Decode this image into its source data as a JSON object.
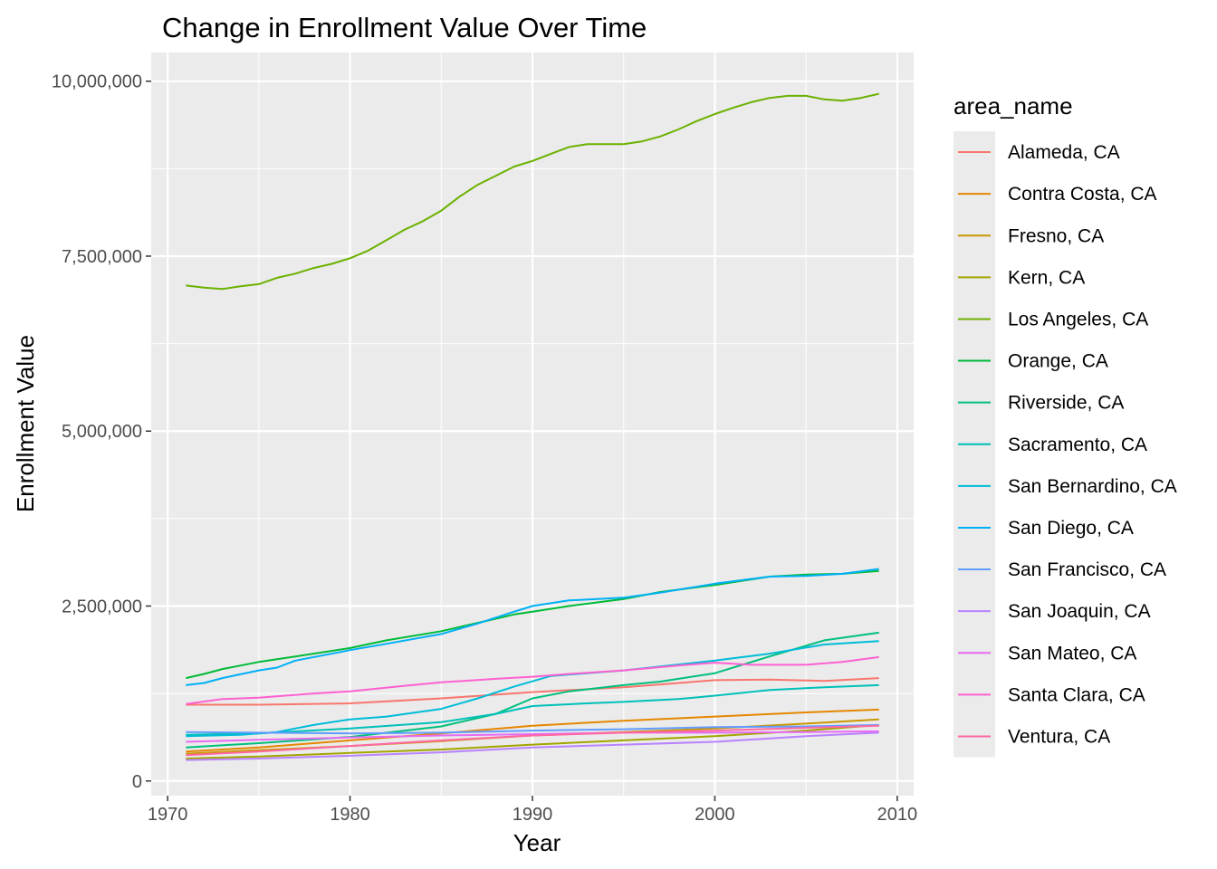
{
  "chart_data": {
    "type": "line",
    "title": "Change in Enrollment Value Over Time",
    "xlabel": "Year",
    "ylabel": "Enrollment Value",
    "xlim": [
      1969.1,
      2010.9
    ],
    "ylim": [
      -210000,
      10410000
    ],
    "x_ticks": [
      1970,
      1980,
      1990,
      2000,
      2010
    ],
    "y_ticks": [
      0,
      2500000,
      5000000,
      7500000,
      10000000
    ],
    "x_tick_labels": [
      "1970",
      "1980",
      "1990",
      "2000",
      "2010"
    ],
    "y_tick_labels": [
      "0",
      "2,500,000",
      "5,000,000",
      "7,500,000",
      "10,000,000"
    ],
    "grid": true,
    "panel_background": "#ebebeb",
    "grid_color": "#ffffff",
    "legend": {
      "title": "area_name",
      "position": "right",
      "key_background": "#ebebeb"
    },
    "series": [
      {
        "name": "Alameda, CA",
        "color": "#F8766D",
        "points": [
          [
            1971,
            1090000
          ],
          [
            1975,
            1090000
          ],
          [
            1980,
            1110000
          ],
          [
            1985,
            1180000
          ],
          [
            1990,
            1270000
          ],
          [
            1995,
            1340000
          ],
          [
            2000,
            1440000
          ],
          [
            2003,
            1450000
          ],
          [
            2006,
            1430000
          ],
          [
            2009,
            1470000
          ]
        ]
      },
      {
        "name": "Contra Costa, CA",
        "color": "#E58700",
        "points": [
          [
            1971,
            420000
          ],
          [
            1975,
            480000
          ],
          [
            1980,
            580000
          ],
          [
            1985,
            680000
          ],
          [
            1990,
            790000
          ],
          [
            1995,
            860000
          ],
          [
            2000,
            920000
          ],
          [
            2005,
            980000
          ],
          [
            2009,
            1020000
          ]
        ]
      },
      {
        "name": "Fresno, CA",
        "color": "#C99800",
        "points": [
          [
            1971,
            390000
          ],
          [
            1975,
            440000
          ],
          [
            1980,
            500000
          ],
          [
            1985,
            570000
          ],
          [
            1990,
            650000
          ],
          [
            1995,
            700000
          ],
          [
            2000,
            750000
          ],
          [
            2005,
            820000
          ],
          [
            2009,
            880000
          ]
        ]
      },
      {
        "name": "Kern, CA",
        "color": "#A3A500",
        "points": [
          [
            1971,
            320000
          ],
          [
            1975,
            350000
          ],
          [
            1980,
            400000
          ],
          [
            1985,
            450000
          ],
          [
            1990,
            520000
          ],
          [
            1995,
            580000
          ],
          [
            2000,
            640000
          ],
          [
            2005,
            720000
          ],
          [
            2009,
            800000
          ]
        ]
      },
      {
        "name": "Los Angeles, CA",
        "color": "#6BB100",
        "points": [
          [
            1971,
            7080000
          ],
          [
            1972,
            7050000
          ],
          [
            1973,
            7030000
          ],
          [
            1974,
            7070000
          ],
          [
            1975,
            7100000
          ],
          [
            1976,
            7190000
          ],
          [
            1977,
            7250000
          ],
          [
            1978,
            7330000
          ],
          [
            1979,
            7390000
          ],
          [
            1980,
            7470000
          ],
          [
            1981,
            7580000
          ],
          [
            1982,
            7730000
          ],
          [
            1983,
            7880000
          ],
          [
            1984,
            8000000
          ],
          [
            1985,
            8150000
          ],
          [
            1986,
            8350000
          ],
          [
            1987,
            8520000
          ],
          [
            1988,
            8650000
          ],
          [
            1989,
            8780000
          ],
          [
            1990,
            8860000
          ],
          [
            1991,
            8960000
          ],
          [
            1992,
            9060000
          ],
          [
            1993,
            9100000
          ],
          [
            1994,
            9100000
          ],
          [
            1995,
            9100000
          ],
          [
            1996,
            9140000
          ],
          [
            1997,
            9210000
          ],
          [
            1998,
            9310000
          ],
          [
            1999,
            9430000
          ],
          [
            2000,
            9530000
          ],
          [
            2001,
            9620000
          ],
          [
            2002,
            9700000
          ],
          [
            2003,
            9760000
          ],
          [
            2004,
            9790000
          ],
          [
            2005,
            9790000
          ],
          [
            2006,
            9740000
          ],
          [
            2007,
            9720000
          ],
          [
            2008,
            9760000
          ],
          [
            2009,
            9820000
          ]
        ]
      },
      {
        "name": "Orange, CA",
        "color": "#00BA38",
        "points": [
          [
            1971,
            1470000
          ],
          [
            1972,
            1530000
          ],
          [
            1973,
            1600000
          ],
          [
            1975,
            1700000
          ],
          [
            1977,
            1780000
          ],
          [
            1980,
            1900000
          ],
          [
            1982,
            2010000
          ],
          [
            1985,
            2140000
          ],
          [
            1987,
            2260000
          ],
          [
            1989,
            2380000
          ],
          [
            1990,
            2420000
          ],
          [
            1992,
            2500000
          ],
          [
            1995,
            2600000
          ],
          [
            1997,
            2700000
          ],
          [
            2000,
            2800000
          ],
          [
            2003,
            2920000
          ],
          [
            2005,
            2950000
          ],
          [
            2007,
            2960000
          ],
          [
            2009,
            3000000
          ]
        ]
      },
      {
        "name": "Riverside, CA",
        "color": "#00BF7D",
        "points": [
          [
            1971,
            480000
          ],
          [
            1975,
            540000
          ],
          [
            1980,
            630000
          ],
          [
            1985,
            780000
          ],
          [
            1988,
            960000
          ],
          [
            1990,
            1180000
          ],
          [
            1992,
            1280000
          ],
          [
            1995,
            1370000
          ],
          [
            1997,
            1420000
          ],
          [
            2000,
            1540000
          ],
          [
            2003,
            1780000
          ],
          [
            2006,
            2010000
          ],
          [
            2009,
            2120000
          ]
        ]
      },
      {
        "name": "Sacramento, CA",
        "color": "#00C0B8",
        "points": [
          [
            1971,
            660000
          ],
          [
            1975,
            680000
          ],
          [
            1980,
            750000
          ],
          [
            1985,
            840000
          ],
          [
            1988,
            960000
          ],
          [
            1990,
            1070000
          ],
          [
            1993,
            1110000
          ],
          [
            1995,
            1130000
          ],
          [
            1998,
            1170000
          ],
          [
            2000,
            1220000
          ],
          [
            2003,
            1300000
          ],
          [
            2006,
            1340000
          ],
          [
            2009,
            1370000
          ]
        ]
      },
      {
        "name": "San Bernardino, CA",
        "color": "#00BCD8",
        "points": [
          [
            1971,
            640000
          ],
          [
            1974,
            660000
          ],
          [
            1976,
            700000
          ],
          [
            1978,
            800000
          ],
          [
            1980,
            880000
          ],
          [
            1982,
            920000
          ],
          [
            1985,
            1030000
          ],
          [
            1987,
            1180000
          ],
          [
            1989,
            1350000
          ],
          [
            1991,
            1500000
          ],
          [
            1995,
            1580000
          ],
          [
            2000,
            1720000
          ],
          [
            2003,
            1820000
          ],
          [
            2006,
            1950000
          ],
          [
            2009,
            2000000
          ]
        ]
      },
      {
        "name": "San Diego, CA",
        "color": "#00B0F6",
        "points": [
          [
            1971,
            1370000
          ],
          [
            1972,
            1400000
          ],
          [
            1973,
            1470000
          ],
          [
            1975,
            1580000
          ],
          [
            1976,
            1620000
          ],
          [
            1977,
            1720000
          ],
          [
            1980,
            1870000
          ],
          [
            1982,
            1960000
          ],
          [
            1985,
            2100000
          ],
          [
            1987,
            2250000
          ],
          [
            1989,
            2420000
          ],
          [
            1990,
            2500000
          ],
          [
            1992,
            2580000
          ],
          [
            1995,
            2620000
          ],
          [
            1997,
            2690000
          ],
          [
            2000,
            2820000
          ],
          [
            2003,
            2920000
          ],
          [
            2005,
            2930000
          ],
          [
            2007,
            2960000
          ],
          [
            2009,
            3030000
          ]
        ]
      },
      {
        "name": "San Francisco, CA",
        "color": "#619CFF",
        "points": [
          [
            1971,
            700000
          ],
          [
            1975,
            690000
          ],
          [
            1980,
            680000
          ],
          [
            1985,
            690000
          ],
          [
            1990,
            720000
          ],
          [
            1995,
            740000
          ],
          [
            2000,
            770000
          ],
          [
            2005,
            780000
          ],
          [
            2009,
            800000
          ]
        ]
      },
      {
        "name": "San Joaquin, CA",
        "color": "#B983FF",
        "points": [
          [
            1971,
            300000
          ],
          [
            1975,
            320000
          ],
          [
            1980,
            360000
          ],
          [
            1985,
            410000
          ],
          [
            1990,
            480000
          ],
          [
            1995,
            520000
          ],
          [
            2000,
            560000
          ],
          [
            2005,
            640000
          ],
          [
            2009,
            690000
          ]
        ]
      },
      {
        "name": "San Mateo, CA",
        "color": "#E76BF3",
        "points": [
          [
            1971,
            560000
          ],
          [
            1975,
            590000
          ],
          [
            1980,
            620000
          ],
          [
            1985,
            650000
          ],
          [
            1990,
            670000
          ],
          [
            1995,
            690000
          ],
          [
            2000,
            690000
          ],
          [
            2005,
            700000
          ],
          [
            2009,
            710000
          ]
        ]
      },
      {
        "name": "Santa Clara, CA",
        "color": "#FD61D1",
        "points": [
          [
            1971,
            1100000
          ],
          [
            1973,
            1170000
          ],
          [
            1975,
            1190000
          ],
          [
            1978,
            1250000
          ],
          [
            1980,
            1280000
          ],
          [
            1983,
            1360000
          ],
          [
            1985,
            1410000
          ],
          [
            1988,
            1460000
          ],
          [
            1990,
            1490000
          ],
          [
            1992,
            1530000
          ],
          [
            1995,
            1580000
          ],
          [
            1998,
            1650000
          ],
          [
            2000,
            1690000
          ],
          [
            2002,
            1660000
          ],
          [
            2005,
            1660000
          ],
          [
            2007,
            1700000
          ],
          [
            2009,
            1770000
          ]
        ]
      },
      {
        "name": "Ventura, CA",
        "color": "#FF67A4",
        "points": [
          [
            1971,
            370000
          ],
          [
            1975,
            420000
          ],
          [
            1980,
            500000
          ],
          [
            1985,
            580000
          ],
          [
            1990,
            650000
          ],
          [
            1995,
            690000
          ],
          [
            2000,
            720000
          ],
          [
            2005,
            760000
          ],
          [
            2009,
            790000
          ]
        ]
      }
    ]
  }
}
